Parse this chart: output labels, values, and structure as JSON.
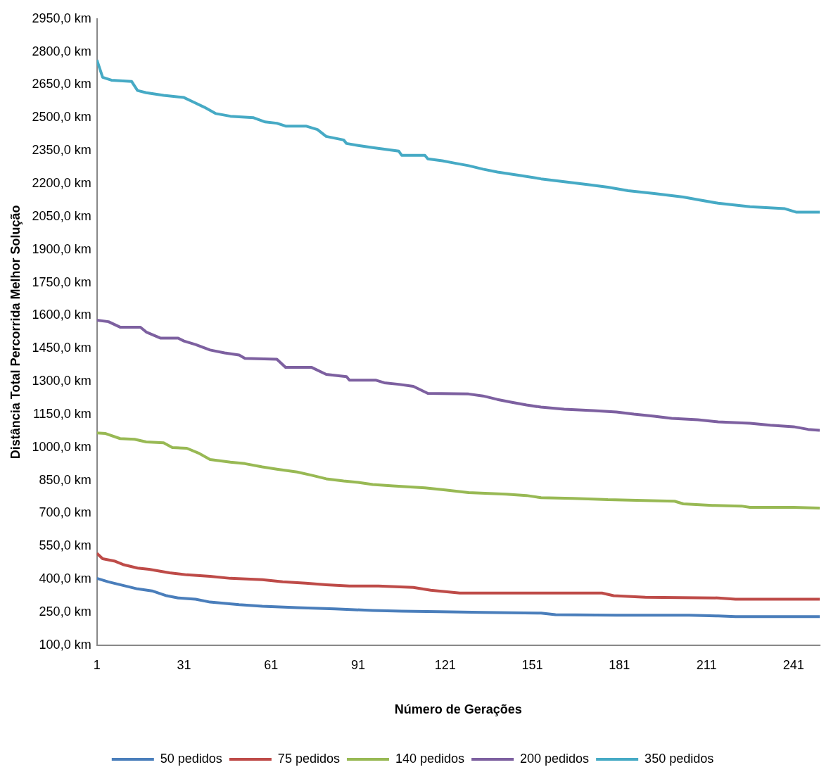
{
  "chart_data": {
    "type": "line",
    "xlabel": "Número de Gerações",
    "ylabel": "Distância Total Percorrida Melhor Solução",
    "xlim": [
      1,
      250
    ],
    "xticks": [
      1,
      31,
      61,
      91,
      121,
      151,
      181,
      211,
      241
    ],
    "ylim": [
      100,
      2950
    ],
    "yticks": [
      {
        "value": 100,
        "label": "100,0 km"
      },
      {
        "value": 250,
        "label": "250,0 km"
      },
      {
        "value": 400,
        "label": "400,0 km"
      },
      {
        "value": 550,
        "label": "550,0 km"
      },
      {
        "value": 700,
        "label": "700,0 km"
      },
      {
        "value": 850,
        "label": "850,0 km"
      },
      {
        "value": 1000,
        "label": "1000,0 km"
      },
      {
        "value": 1150,
        "label": "1150,0 km"
      },
      {
        "value": 1300,
        "label": "1300,0 km"
      },
      {
        "value": 1450,
        "label": "1450,0 km"
      },
      {
        "value": 1600,
        "label": "1600,0 km"
      },
      {
        "value": 1750,
        "label": "1750,0 km"
      },
      {
        "value": 1900,
        "label": "1900,0 km"
      },
      {
        "value": 2050,
        "label": "2050,0 km"
      },
      {
        "value": 2200,
        "label": "2200,0 km"
      },
      {
        "value": 2350,
        "label": "2350,0 km"
      },
      {
        "value": 2500,
        "label": "2500,0 km"
      },
      {
        "value": 2650,
        "label": "2650,0 km"
      },
      {
        "value": 2800,
        "label": "2800,0 km"
      },
      {
        "value": 2950,
        "label": "2950,0 km"
      }
    ],
    "grid": false,
    "legend": "bottom",
    "marker": "none",
    "line_style": "solid",
    "series": [
      {
        "name": "50 pedidos",
        "color": "#4a7ebb",
        "x": [
          1,
          5,
          10,
          15,
          20,
          25,
          29,
          35,
          40,
          50,
          58,
          70,
          83,
          96,
          106,
          119,
          134,
          154,
          159,
          180,
          205,
          215,
          221,
          250
        ],
        "values": [
          404,
          388,
          372,
          356,
          347,
          325,
          315,
          309,
          296,
          284,
          277,
          271,
          265,
          258,
          255,
          252,
          249,
          246,
          239,
          236,
          236,
          233,
          230,
          230
        ]
      },
      {
        "name": "75 pedidos",
        "color": "#be4b48",
        "x": [
          1,
          3,
          7,
          10,
          15,
          19,
          26,
          32,
          40,
          47,
          58,
          65,
          73,
          80,
          88,
          98,
          110,
          116,
          126,
          175,
          179,
          190,
          215,
          221,
          250
        ],
        "values": [
          518,
          493,
          483,
          467,
          451,
          445,
          429,
          420,
          413,
          404,
          398,
          388,
          382,
          375,
          369,
          369,
          363,
          350,
          337,
          337,
          325,
          318,
          315,
          309,
          309
        ]
      },
      {
        "name": "140 pedidos",
        "color": "#98b954",
        "x": [
          1,
          4,
          9,
          14,
          18,
          24,
          27,
          32,
          36,
          40,
          47,
          52,
          58,
          63,
          70,
          75,
          80,
          86,
          91,
          96,
          103,
          114,
          121,
          129,
          142,
          149,
          154,
          165,
          172,
          177,
          187,
          200,
          203,
          213,
          223,
          226,
          241,
          250
        ],
        "values": [
          1066,
          1063,
          1040,
          1037,
          1025,
          1021,
          999,
          996,
          974,
          945,
          933,
          926,
          911,
          901,
          888,
          873,
          857,
          847,
          841,
          831,
          825,
          816,
          806,
          794,
          787,
          781,
          771,
          768,
          765,
          762,
          759,
          755,
          743,
          736,
          733,
          727,
          727,
          724
        ]
      },
      {
        "name": "200 pedidos",
        "color": "#7d60a0",
        "x": [
          1,
          5,
          9,
          16,
          18,
          23,
          29,
          31,
          35,
          40,
          45,
          50,
          52,
          63,
          66,
          75,
          80,
          87,
          88,
          97,
          100,
          105,
          110,
          115,
          129,
          134,
          139,
          144,
          149,
          154,
          162,
          172,
          180,
          186,
          193,
          199,
          208,
          215,
          226,
          233,
          241,
          246,
          250
        ],
        "values": [
          1579,
          1572,
          1547,
          1547,
          1525,
          1497,
          1497,
          1484,
          1468,
          1443,
          1430,
          1420,
          1405,
          1401,
          1364,
          1364,
          1332,
          1322,
          1306,
          1306,
          1294,
          1287,
          1278,
          1246,
          1243,
          1234,
          1218,
          1205,
          1193,
          1183,
          1174,
          1167,
          1161,
          1151,
          1142,
          1132,
          1126,
          1116,
          1110,
          1101,
          1094,
          1082,
          1078
        ]
      },
      {
        "name": "350 pedidos",
        "color": "#46aac5",
        "x": [
          1,
          3,
          6,
          13,
          15,
          18,
          24,
          31,
          34,
          38,
          42,
          47,
          55,
          59,
          63,
          66,
          73,
          77,
          80,
          86,
          87,
          91,
          96,
          105,
          106,
          114,
          115,
          120,
          124,
          129,
          134,
          139,
          147,
          154,
          162,
          170,
          177,
          184,
          193,
          203,
          208,
          215,
          226,
          238,
          242,
          250
        ],
        "values": [
          2763,
          2684,
          2671,
          2665,
          2624,
          2614,
          2602,
          2592,
          2573,
          2548,
          2519,
          2507,
          2500,
          2481,
          2475,
          2462,
          2462,
          2446,
          2415,
          2399,
          2383,
          2374,
          2364,
          2348,
          2329,
          2329,
          2313,
          2304,
          2294,
          2282,
          2266,
          2253,
          2237,
          2222,
          2209,
          2196,
          2184,
          2168,
          2155,
          2139,
          2127,
          2111,
          2095,
          2086,
          2070,
          2070
        ]
      }
    ]
  }
}
